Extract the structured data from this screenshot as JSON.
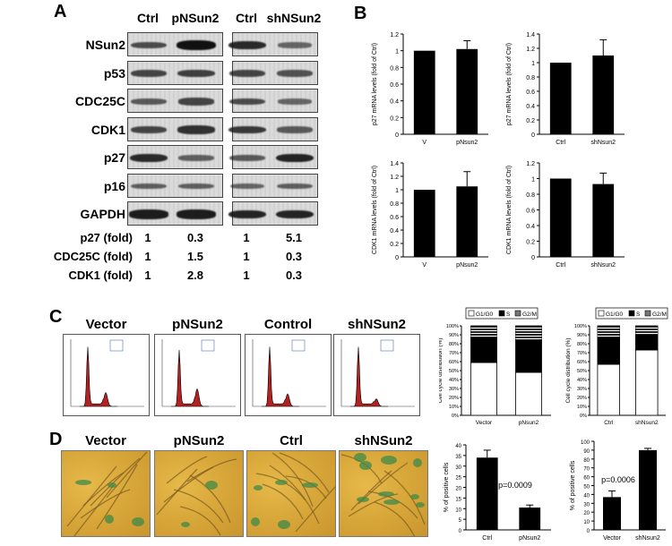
{
  "panel_letters": {
    "a": "A",
    "b": "B",
    "c": "C",
    "d": "D"
  },
  "panel_a": {
    "columns": [
      "Ctrl",
      "pNSun2",
      "Ctrl",
      "shNSun2"
    ],
    "rows": [
      "NSun2",
      "p53",
      "CDC25C",
      "CDK1",
      "p27",
      "p16",
      "GAPDH"
    ],
    "fold_rows": [
      {
        "label": "p27 (fold)",
        "values": [
          "1",
          "0.3",
          "1",
          "5.1"
        ]
      },
      {
        "label": "CDC25C (fold)",
        "values": [
          "1",
          "1.5",
          "1",
          "0.3"
        ]
      },
      {
        "label": "CDK1 (fold)",
        "values": [
          "1",
          "2.8",
          "1",
          "0.3"
        ]
      }
    ],
    "band_intensity": [
      [
        0.55,
        1.0,
        0.8,
        0.35
      ],
      [
        0.6,
        0.65,
        0.6,
        0.5
      ],
      [
        0.45,
        0.6,
        0.55,
        0.35
      ],
      [
        0.6,
        0.75,
        0.7,
        0.45
      ],
      [
        0.8,
        0.4,
        0.45,
        0.85
      ],
      [
        0.4,
        0.4,
        0.35,
        0.4
      ],
      [
        0.9,
        0.9,
        0.85,
        0.85
      ]
    ]
  },
  "panel_c": {
    "flow_titles": [
      "Vector",
      "pNSun2",
      "Control",
      "shNSun2"
    ],
    "legend": [
      "G1/G0",
      "S",
      "G2/M"
    ]
  },
  "panel_d": {
    "image_titles": [
      "Vector",
      "pNSun2",
      "Ctrl",
      "shNSun2"
    ]
  },
  "chart_data": [
    {
      "type": "bar",
      "categories": [
        "V",
        "pNsun2"
      ],
      "values": [
        1.0,
        1.02
      ],
      "errors": [
        0,
        0.1
      ],
      "ylabel": "p27 mRNA levels (fold of Ctrl)",
      "ylim": [
        0,
        1.2
      ],
      "yticks": [
        "0",
        "0.2",
        "0.4",
        "0.6",
        "0.8",
        "1",
        "1.2"
      ]
    },
    {
      "type": "bar",
      "categories": [
        "Ctrl",
        "shNsun2"
      ],
      "values": [
        1.0,
        1.1
      ],
      "errors": [
        0,
        0.22
      ],
      "ylabel": "p27 mRNA levels (fold of Ctrl)",
      "ylim": [
        0,
        1.4
      ],
      "yticks": [
        "0",
        "0.2",
        "0.4",
        "0.6",
        "0.8",
        "1",
        "1.2",
        "1.4"
      ]
    },
    {
      "type": "bar",
      "categories": [
        "V",
        "pNsun2"
      ],
      "values": [
        1.0,
        1.05
      ],
      "errors": [
        0,
        0.22
      ],
      "ylabel": "CDK1 mRNA levels (fold of Ctrl)",
      "ylim": [
        0,
        1.4
      ],
      "yticks": [
        "0",
        "0.2",
        "0.4",
        "0.6",
        "0.8",
        "1",
        "1.2",
        "1.4"
      ]
    },
    {
      "type": "bar",
      "categories": [
        "Ctrl",
        "shNsun2"
      ],
      "values": [
        1.0,
        0.93
      ],
      "errors": [
        0,
        0.14
      ],
      "ylabel": "CDK1 mRNA levels (fold of Ctrl)",
      "ylim": [
        0,
        1.2
      ],
      "yticks": [
        "0",
        "0.2",
        "0.4",
        "0.6",
        "0.8",
        "1",
        "1.2"
      ]
    },
    {
      "type": "bar",
      "stacked": true,
      "categories": [
        "Vector",
        "pNsun2"
      ],
      "series": [
        {
          "name": "G1/G0",
          "values": [
            59,
            48
          ]
        },
        {
          "name": "S",
          "values": [
            28,
            36
          ]
        },
        {
          "name": "G2/M",
          "values": [
            13,
            16
          ]
        }
      ],
      "ylabel": "Cell cycle distribution (%)",
      "ylim": [
        0,
        100
      ],
      "yticks": [
        "0%",
        "10%",
        "20%",
        "30%",
        "40%",
        "50%",
        "60%",
        "70%",
        "80%",
        "90%",
        "100%"
      ]
    },
    {
      "type": "bar",
      "stacked": true,
      "categories": [
        "Ctrl",
        "shNsun2"
      ],
      "series": [
        {
          "name": "G1/G0",
          "values": [
            57,
            73
          ]
        },
        {
          "name": "S",
          "values": [
            31,
            18
          ]
        },
        {
          "name": "G2/M",
          "values": [
            12,
            9
          ]
        }
      ],
      "ylabel": "Cell cycle distribution (%)",
      "ylim": [
        0,
        100
      ],
      "yticks": [
        "0%",
        "10%",
        "20%",
        "30%",
        "40%",
        "50%",
        "60%",
        "70%",
        "80%",
        "90%",
        "100%"
      ]
    },
    {
      "type": "bar",
      "categories": [
        "Ctrl",
        "pNsun2"
      ],
      "values": [
        34,
        10.5
      ],
      "errors": [
        3.5,
        1.2
      ],
      "ylabel": "% of positive cells",
      "ylim": [
        0,
        40
      ],
      "yticks": [
        "0",
        "5",
        "10",
        "15",
        "20",
        "25",
        "30",
        "35",
        "40"
      ],
      "annotation": "p=0.0009"
    },
    {
      "type": "bar",
      "categories": [
        "Vector",
        "shNsun2"
      ],
      "values": [
        37,
        90
      ],
      "errors": [
        7,
        2
      ],
      "ylabel": "% of positive cells",
      "ylim": [
        0,
        100
      ],
      "yticks": [
        "0",
        "10",
        "20",
        "30",
        "40",
        "50",
        "60",
        "70",
        "80",
        "90",
        "100"
      ],
      "annotation": "p=0.0006"
    }
  ]
}
